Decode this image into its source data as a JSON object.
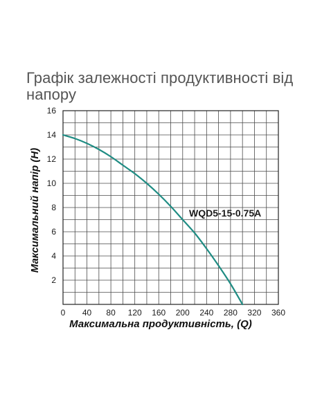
{
  "page": {
    "title": "Графік залежності продуктивності від напору"
  },
  "chart_data": {
    "type": "line",
    "title": "Графік залежності продуктивності від напору",
    "xlabel": "Максимальна продуктивність, (Q)",
    "ylabel": "Максимальний напір (H)",
    "xlim": [
      0,
      360
    ],
    "ylim": [
      0,
      16
    ],
    "x_ticks": [
      0,
      40,
      80,
      120,
      160,
      200,
      240,
      280,
      320,
      360
    ],
    "y_ticks": [
      2,
      4,
      6,
      8,
      10,
      12,
      14,
      16
    ],
    "grid": true,
    "grid_step_x": 20,
    "grid_step_y": 1,
    "series": [
      {
        "name": "WQD5-15-0.75A",
        "color": "#1f8c83",
        "x": [
          0,
          20,
          40,
          60,
          80,
          100,
          120,
          140,
          160,
          180,
          200,
          220,
          240,
          260,
          280,
          300
        ],
        "y": [
          14,
          13.7,
          13.3,
          12.8,
          12.2,
          11.5,
          10.8,
          10.0,
          9.1,
          8.1,
          7.0,
          5.9,
          4.6,
          3.2,
          1.7,
          0
        ]
      }
    ]
  }
}
